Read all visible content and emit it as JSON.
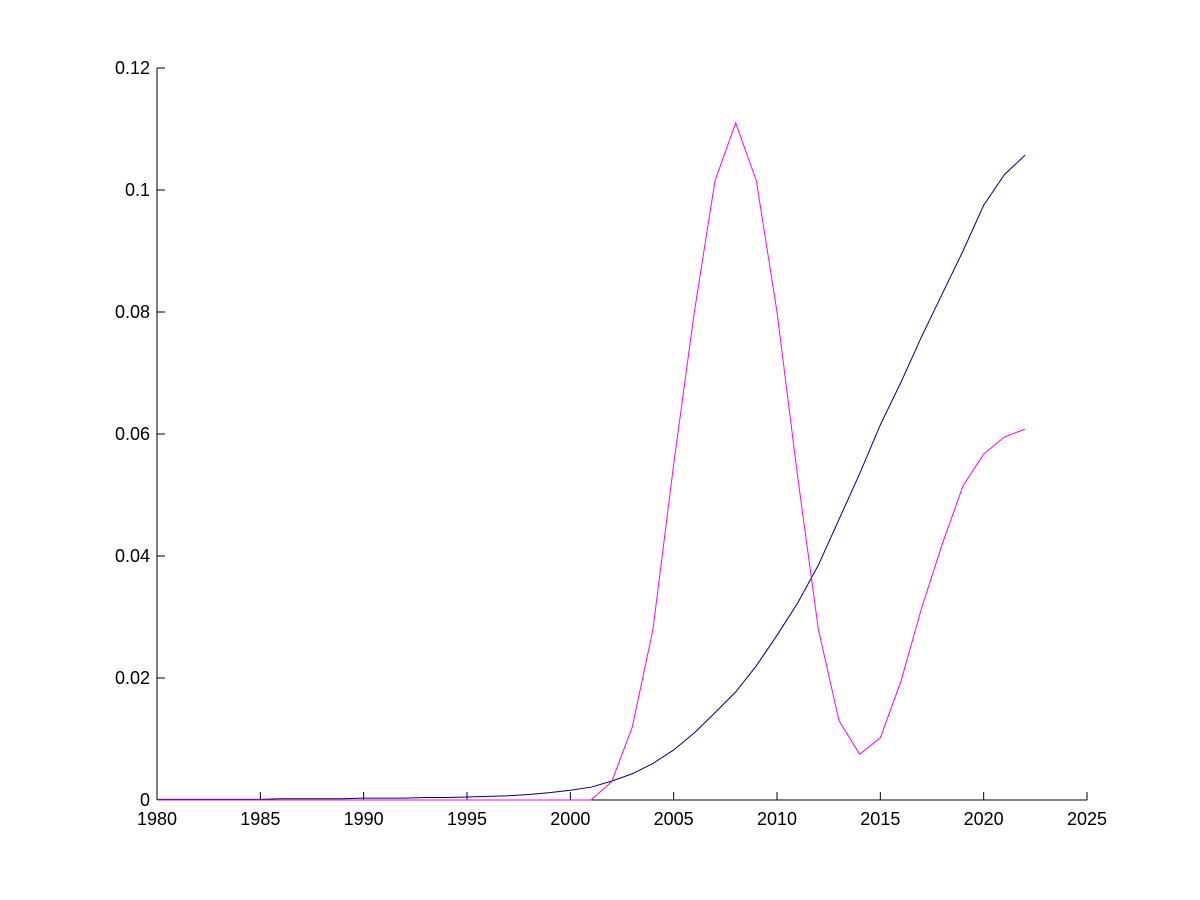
{
  "chart_data": {
    "type": "line",
    "x": [
      1980,
      1981,
      1982,
      1983,
      1984,
      1985,
      1986,
      1987,
      1988,
      1989,
      1990,
      1991,
      1992,
      1993,
      1994,
      1995,
      1996,
      1997,
      1998,
      1999,
      2000,
      2001,
      2002,
      2003,
      2004,
      2005,
      2006,
      2007,
      2008,
      2009,
      2010,
      2011,
      2012,
      2013,
      2014,
      2015,
      2016,
      2017,
      2018,
      2019,
      2020,
      2021,
      2022
    ],
    "series": [
      {
        "color": "#00007f",
        "values": [
          0.0001,
          0.0001,
          0.0001,
          0.0001,
          0.0001,
          0.0001,
          0.0002,
          0.0002,
          0.0002,
          0.0002,
          0.0003,
          0.0003,
          0.0003,
          0.0004,
          0.0004,
          0.0005,
          0.0006,
          0.0007,
          0.0009,
          0.0012,
          0.0016,
          0.0021,
          0.0031,
          0.0043,
          0.006,
          0.0082,
          0.011,
          0.0143,
          0.0177,
          0.022,
          0.027,
          0.0323,
          0.0385,
          0.046,
          0.0535,
          0.0615,
          0.0685,
          0.076,
          0.083,
          0.09,
          0.0975,
          0.1025,
          0.1057
        ]
      },
      {
        "color": "#ff00ff",
        "values": [
          0,
          0,
          0,
          0,
          0,
          0,
          0,
          0,
          0,
          0,
          0,
          0,
          0,
          0,
          0,
          0,
          0,
          0,
          0,
          0,
          0,
          0,
          0.003,
          0.012,
          0.028,
          0.055,
          0.08,
          0.1015,
          0.111,
          0.1015,
          0.08,
          0.053,
          0.028,
          0.013,
          0.0075,
          0.0102,
          0.0195,
          0.0315,
          0.042,
          0.0515,
          0.0567,
          0.0595,
          0.0608
        ]
      }
    ],
    "xlim": [
      1980,
      2025
    ],
    "xticks": [
      1980,
      1985,
      1990,
      1995,
      2000,
      2005,
      2010,
      2015,
      2020,
      2025
    ],
    "ylim": [
      0,
      0.12
    ],
    "yticks": [
      0,
      0.02,
      0.04,
      0.06,
      0.08,
      0.1,
      0.12
    ],
    "grid": false
  }
}
